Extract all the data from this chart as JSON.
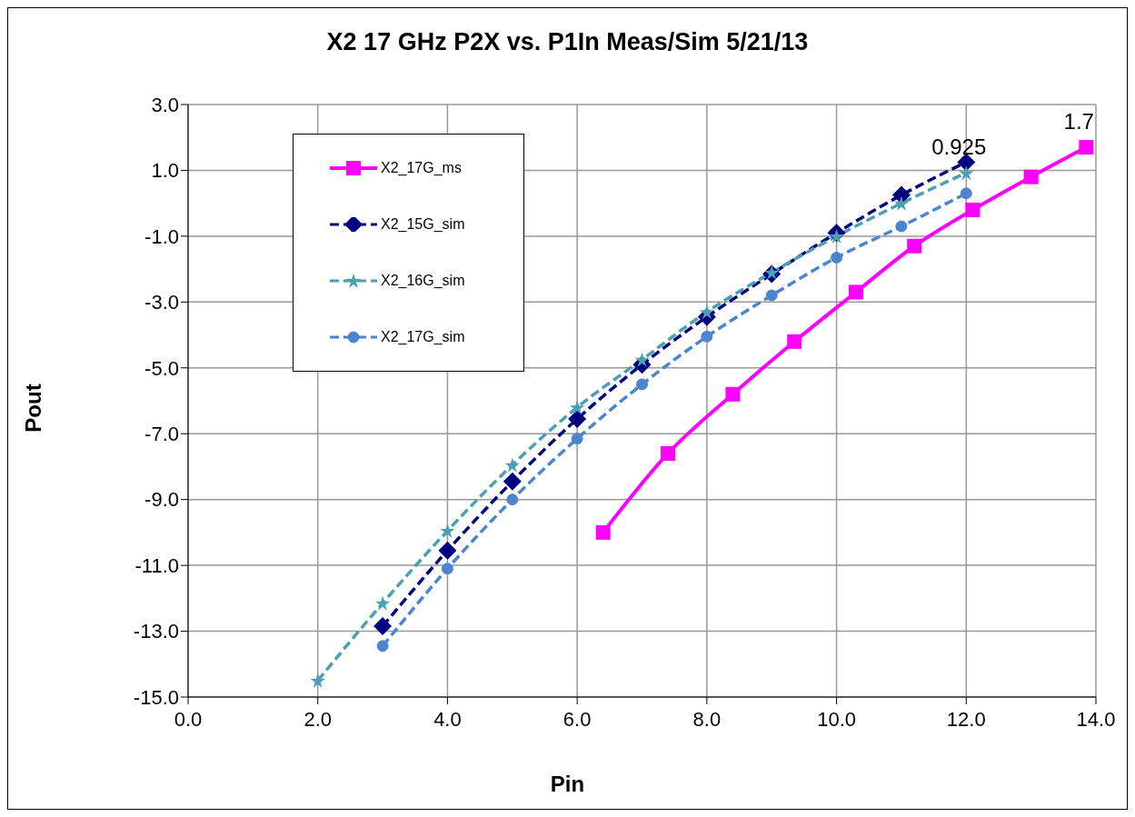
{
  "chart_data": {
    "type": "line",
    "title": "X2 17 GHz P2X vs. P1In Meas/Sim 5/21/13",
    "xlabel": "Pin",
    "ylabel": "Pout",
    "xlim": [
      0,
      14
    ],
    "xticks": [
      {
        "value": 0,
        "label": "0.0"
      },
      {
        "value": 2,
        "label": "2.0"
      },
      {
        "value": 4,
        "label": "4.0"
      },
      {
        "value": 6,
        "label": "6.0"
      },
      {
        "value": 8,
        "label": "8.0"
      },
      {
        "value": 10,
        "label": "10.0"
      },
      {
        "value": 12,
        "label": "12.0"
      },
      {
        "value": 14,
        "label": "14.0"
      }
    ],
    "ylim": [
      -15,
      3
    ],
    "yticks": [
      {
        "value": -15,
        "label": "-15.0"
      },
      {
        "value": -13,
        "label": "-13.0"
      },
      {
        "value": -11,
        "label": "-11.0"
      },
      {
        "value": -9,
        "label": "-9.0"
      },
      {
        "value": -7,
        "label": "-7.0"
      },
      {
        "value": -5,
        "label": "-5.0"
      },
      {
        "value": -3,
        "label": "-3.0"
      },
      {
        "value": -1,
        "label": "-1.0"
      },
      {
        "value": 1,
        "label": "1.0"
      },
      {
        "value": 3,
        "label": "3.0"
      }
    ],
    "grid": true,
    "legend": "top left",
    "series": [
      {
        "name": "X2_17G_ms",
        "color": "#ff00ff",
        "marker": "square",
        "line_style": "solid",
        "x": [
          6.4,
          7.4,
          8.4,
          9.35,
          10.3,
          11.2,
          12.1,
          13.0,
          13.85
        ],
        "values": [
          -10.0,
          -7.6,
          -5.8,
          -4.2,
          -2.7,
          -1.3,
          -0.2,
          0.8,
          1.7
        ],
        "value_labels": [
          null,
          null,
          null,
          null,
          null,
          null,
          null,
          null,
          "1.7"
        ]
      },
      {
        "name": "X2_15G_sim",
        "color": "#000080",
        "marker": "diamond",
        "line_style": "dashed",
        "x": [
          3,
          4,
          5,
          6,
          7,
          8,
          9,
          10,
          11,
          12
        ],
        "values": [
          -12.85,
          -10.55,
          -8.45,
          -6.55,
          -4.9,
          -3.45,
          -2.15,
          -0.9,
          0.25,
          1.25
        ]
      },
      {
        "name": "X2_16G_sim",
        "color": "#4aa0b5",
        "marker": "star",
        "line_style": "dashed",
        "x": [
          2,
          3,
          4,
          5,
          6,
          7,
          8,
          9,
          10,
          11,
          12
        ],
        "values": [
          -14.5,
          -12.15,
          -9.95,
          -7.95,
          -6.2,
          -4.75,
          -3.3,
          -2.1,
          -1.0,
          0.0,
          0.925
        ],
        "value_labels": [
          null,
          null,
          null,
          null,
          null,
          null,
          null,
          null,
          null,
          null,
          "0.925"
        ]
      },
      {
        "name": "X2_17G_sim",
        "color": "#4a86d0",
        "marker": "circle",
        "line_style": "dashed",
        "x": [
          3,
          4,
          5,
          6,
          7,
          8,
          9,
          10,
          11,
          12
        ],
        "values": [
          -13.45,
          -11.1,
          -9.0,
          -7.15,
          -5.5,
          -4.05,
          -2.8,
          -1.65,
          -0.7,
          0.3
        ]
      }
    ]
  }
}
